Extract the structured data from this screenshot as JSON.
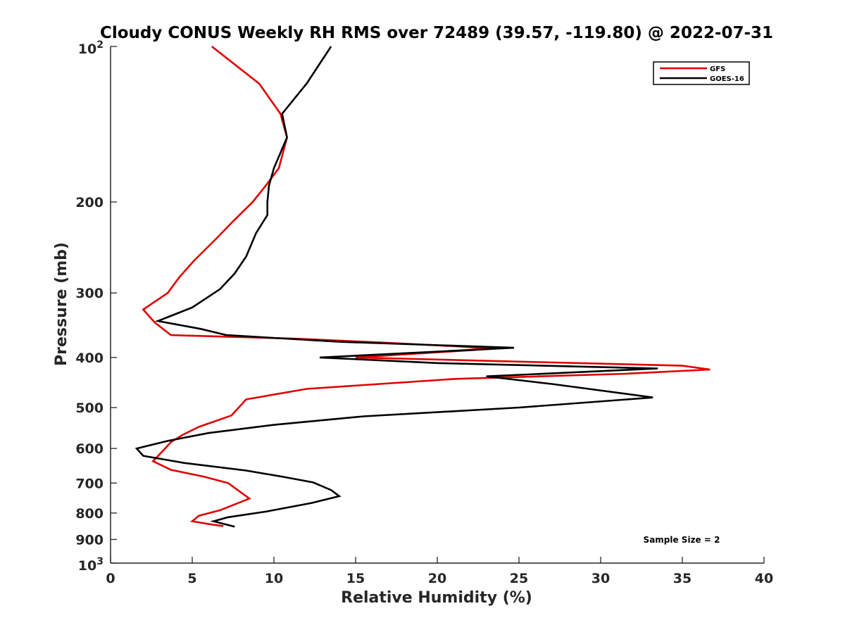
{
  "chart_data": {
    "type": "line",
    "title": "Cloudy CONUS Weekly RH RMS over 72489 (39.57, -119.80) @ 2022-07-31",
    "xlabel": "Relative Humidity (%)",
    "ylabel": "Pressure (mb)",
    "xlim": [
      0,
      40
    ],
    "ylim": [
      100,
      1000
    ],
    "y_scale": "log",
    "y_reversed": true,
    "grid": false,
    "legend_position": "top-right",
    "x_ticks": [
      {
        "value": 0,
        "label": "0"
      },
      {
        "value": 5,
        "label": "5"
      },
      {
        "value": 10,
        "label": "10"
      },
      {
        "value": 15,
        "label": "15"
      },
      {
        "value": 20,
        "label": "20"
      },
      {
        "value": 25,
        "label": "25"
      },
      {
        "value": 30,
        "label": "30"
      },
      {
        "value": 35,
        "label": "35"
      },
      {
        "value": 40,
        "label": "40"
      }
    ],
    "y_ticks": [
      {
        "value": 100,
        "base": "10",
        "sup": "2"
      },
      {
        "value": 200,
        "label": "200"
      },
      {
        "value": 300,
        "label": "300"
      },
      {
        "value": 400,
        "label": "400"
      },
      {
        "value": 500,
        "label": "500"
      },
      {
        "value": 600,
        "label": "600"
      },
      {
        "value": 700,
        "label": "700"
      },
      {
        "value": 800,
        "label": "800"
      },
      {
        "value": 900,
        "label": "900"
      },
      {
        "value": 1000,
        "base": "10",
        "sup": "3"
      }
    ],
    "series": [
      {
        "name": "GFS",
        "color": "#e00000",
        "points": [
          [
            6.2,
            100
          ],
          [
            9.1,
            118
          ],
          [
            10.4,
            135
          ],
          [
            10.8,
            150
          ],
          [
            10.3,
            172
          ],
          [
            9.5,
            186
          ],
          [
            8.7,
            200
          ],
          [
            7.5,
            218
          ],
          [
            6.5,
            235
          ],
          [
            5.1,
            260
          ],
          [
            4.2,
            280
          ],
          [
            3.5,
            300
          ],
          [
            2.0,
            323
          ],
          [
            2.7,
            342
          ],
          [
            3.7,
            362
          ],
          [
            11.5,
            368
          ],
          [
            16.5,
            374
          ],
          [
            21.5,
            381
          ],
          [
            23.3,
            385
          ],
          [
            15.0,
            400
          ],
          [
            35.0,
            415
          ],
          [
            36.7,
            422
          ],
          [
            31.5,
            430
          ],
          [
            21.1,
            440
          ],
          [
            12.0,
            460
          ],
          [
            8.3,
            482
          ],
          [
            7.4,
            518
          ],
          [
            5.4,
            545
          ],
          [
            4.4,
            565
          ],
          [
            3.7,
            583
          ],
          [
            3.3,
            602
          ],
          [
            2.6,
            635
          ],
          [
            3.7,
            660
          ],
          [
            5.7,
            680
          ],
          [
            7.2,
            700
          ],
          [
            8.5,
            750
          ],
          [
            6.7,
            790
          ],
          [
            5.4,
            810
          ],
          [
            5.0,
            830
          ],
          [
            6.2,
            842
          ],
          [
            6.9,
            848
          ]
        ]
      },
      {
        "name": "GOES-16",
        "color": "#000000",
        "points": [
          [
            13.5,
            100
          ],
          [
            12.0,
            118
          ],
          [
            10.5,
            135
          ],
          [
            10.8,
            150
          ],
          [
            10.0,
            172
          ],
          [
            9.7,
            186
          ],
          [
            9.6,
            200
          ],
          [
            9.6,
            212
          ],
          [
            8.9,
            230
          ],
          [
            8.3,
            255
          ],
          [
            7.6,
            275
          ],
          [
            6.7,
            295
          ],
          [
            5.0,
            320
          ],
          [
            2.9,
            340
          ],
          [
            5.5,
            352
          ],
          [
            7.1,
            362
          ],
          [
            14.0,
            373
          ],
          [
            24.7,
            383
          ],
          [
            12.8,
            400
          ],
          [
            20.0,
            410
          ],
          [
            33.5,
            420
          ],
          [
            23.0,
            435
          ],
          [
            27.0,
            450
          ],
          [
            33.2,
            478
          ],
          [
            25.0,
            500
          ],
          [
            15.5,
            520
          ],
          [
            10.0,
            540
          ],
          [
            6.0,
            560
          ],
          [
            3.5,
            580
          ],
          [
            1.6,
            600
          ],
          [
            2.0,
            620
          ],
          [
            4.5,
            640
          ],
          [
            8.3,
            662
          ],
          [
            10.7,
            682
          ],
          [
            12.4,
            698
          ],
          [
            13.5,
            722
          ],
          [
            14.0,
            742
          ],
          [
            12.3,
            765
          ],
          [
            9.5,
            795
          ],
          [
            7.2,
            815
          ],
          [
            6.3,
            830
          ],
          [
            7.6,
            850
          ]
        ]
      }
    ],
    "annotations": [
      {
        "text": "Sample Size = 2",
        "x": 33.5,
        "y": 900
      }
    ]
  }
}
